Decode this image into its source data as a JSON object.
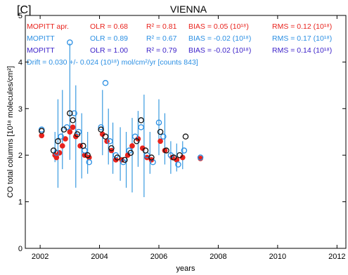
{
  "panel_label": "[C]",
  "title": "VIENNA",
  "stats": [
    {
      "series": "MOPITT apr.",
      "olr": "OLR = 0.68",
      "r2": "R² = 0.81",
      "bias": "BIAS = 0.05 (10¹⁸)",
      "rms": "RMS = 0.12 (10¹⁸)",
      "color": "#e8231d"
    },
    {
      "series": "MOPITT",
      "olr": "OLR = 0.89",
      "r2": "R² = 0.67",
      "bias": "BIAS = -0.02 (10¹⁸)",
      "rms": "RMS = 0.17 (10¹⁸)",
      "color": "#2b8fe3"
    },
    {
      "series": "MOPITT",
      "olr": "OLR = 1.00",
      "r2": "R² = 0.79",
      "bias": "BIAS = -0.02 (10¹⁸)",
      "rms": "RMS = 0.14 (10¹⁸)",
      "color": "#3a1fc8"
    }
  ],
  "drift_text": "Drift = 0.030 +/-  0.024 (10¹⁸) mol/cm²/yr  [counts  843]",
  "drift_color": "#2b8fe3",
  "chart_data": {
    "type": "scatter",
    "xlabel": "years",
    "ylabel": "CO total columns [10¹⁸ molecules/cm²]",
    "xlim": [
      2001.5,
      2012.3
    ],
    "ylim": [
      0,
      5
    ],
    "x_ticks": [
      2002,
      2004,
      2006,
      2008,
      2010,
      2012
    ],
    "y_ticks": [
      0,
      1,
      2,
      3,
      4,
      5
    ],
    "grid": false,
    "colors": {
      "ftir_bars": "#3a9be0",
      "mopitt_apr": "#e8231d",
      "mopitt": "#2b8fe3",
      "mopitt_smoothed": "#111111"
    },
    "ftir_error_bars": [
      {
        "x": 2002.5,
        "low": 1.85,
        "high": 2.5
      },
      {
        "x": 2002.6,
        "low": 1.3,
        "high": 3.2
      },
      {
        "x": 2002.75,
        "low": 1.7,
        "high": 3.4
      },
      {
        "x": 2003.0,
        "low": 1.9,
        "high": 4.4
      },
      {
        "x": 2003.2,
        "low": 1.3,
        "high": 3.5
      },
      {
        "x": 2003.4,
        "low": 1.5,
        "high": 2.9
      },
      {
        "x": 2003.6,
        "low": 1.6,
        "high": 2.5
      },
      {
        "x": 2004.1,
        "low": 2.0,
        "high": 3.4
      },
      {
        "x": 2004.3,
        "low": 1.8,
        "high": 3.0
      },
      {
        "x": 2004.45,
        "low": 1.6,
        "high": 2.7
      },
      {
        "x": 2004.7,
        "low": 1.45,
        "high": 2.6
      },
      {
        "x": 2004.9,
        "low": 1.3,
        "high": 2.5
      },
      {
        "x": 2005.1,
        "low": 1.2,
        "high": 2.8
      },
      {
        "x": 2005.3,
        "low": 1.75,
        "high": 2.95
      },
      {
        "x": 2005.5,
        "low": 1.1,
        "high": 3.3
      },
      {
        "x": 2005.7,
        "low": 1.6,
        "high": 2.5
      },
      {
        "x": 2006.0,
        "low": 2.0,
        "high": 3.2
      },
      {
        "x": 2006.2,
        "low": 1.8,
        "high": 2.9
      },
      {
        "x": 2006.4,
        "low": 1.6,
        "high": 2.3
      },
      {
        "x": 2006.6,
        "low": 1.65,
        "high": 2.25
      },
      {
        "x": 2006.8,
        "low": 1.7,
        "high": 2.3
      }
    ],
    "series": [
      {
        "name": "MOPITT apr.",
        "points": [
          {
            "x": 2002.05,
            "y": 2.42
          },
          {
            "x": 2002.5,
            "y": 2.0
          },
          {
            "x": 2002.55,
            "y": 1.95
          },
          {
            "x": 2002.65,
            "y": 2.05
          },
          {
            "x": 2002.75,
            "y": 2.2
          },
          {
            "x": 2002.85,
            "y": 2.35
          },
          {
            "x": 2003.0,
            "y": 2.5
          },
          {
            "x": 2003.1,
            "y": 2.6
          },
          {
            "x": 2003.2,
            "y": 2.4
          },
          {
            "x": 2003.35,
            "y": 2.2
          },
          {
            "x": 2003.5,
            "y": 2.0
          },
          {
            "x": 2003.65,
            "y": 1.95
          },
          {
            "x": 2004.1,
            "y": 2.45
          },
          {
            "x": 2004.25,
            "y": 2.3
          },
          {
            "x": 2004.4,
            "y": 2.1
          },
          {
            "x": 2004.55,
            "y": 1.9
          },
          {
            "x": 2004.75,
            "y": 1.9
          },
          {
            "x": 2004.95,
            "y": 2.0
          },
          {
            "x": 2005.1,
            "y": 2.2
          },
          {
            "x": 2005.3,
            "y": 2.35
          },
          {
            "x": 2005.45,
            "y": 2.15
          },
          {
            "x": 2005.6,
            "y": 1.95
          },
          {
            "x": 2005.75,
            "y": 1.9
          },
          {
            "x": 2006.05,
            "y": 2.3
          },
          {
            "x": 2006.2,
            "y": 2.1
          },
          {
            "x": 2006.45,
            "y": 1.95
          },
          {
            "x": 2006.6,
            "y": 1.9
          },
          {
            "x": 2006.8,
            "y": 1.95
          },
          {
            "x": 2007.4,
            "y": 1.93
          }
        ]
      },
      {
        "name": "MOPITT",
        "points": [
          {
            "x": 2002.05,
            "y": 2.55
          },
          {
            "x": 2002.55,
            "y": 2.05
          },
          {
            "x": 2002.7,
            "y": 2.4
          },
          {
            "x": 2002.9,
            "y": 2.6
          },
          {
            "x": 2003.0,
            "y": 4.42
          },
          {
            "x": 2003.15,
            "y": 2.9
          },
          {
            "x": 2003.3,
            "y": 2.5
          },
          {
            "x": 2003.5,
            "y": 2.1
          },
          {
            "x": 2003.65,
            "y": 1.85
          },
          {
            "x": 2004.05,
            "y": 2.6
          },
          {
            "x": 2004.2,
            "y": 3.55
          },
          {
            "x": 2004.35,
            "y": 2.3
          },
          {
            "x": 2004.55,
            "y": 2.0
          },
          {
            "x": 2004.8,
            "y": 1.85
          },
          {
            "x": 2005.0,
            "y": 2.1
          },
          {
            "x": 2005.2,
            "y": 2.4
          },
          {
            "x": 2005.4,
            "y": 2.6
          },
          {
            "x": 2005.6,
            "y": 2.0
          },
          {
            "x": 2005.8,
            "y": 1.85
          },
          {
            "x": 2006.0,
            "y": 2.7
          },
          {
            "x": 2006.15,
            "y": 2.4
          },
          {
            "x": 2006.4,
            "y": 2.0
          },
          {
            "x": 2006.65,
            "y": 1.8
          },
          {
            "x": 2006.85,
            "y": 2.1
          },
          {
            "x": 2007.4,
            "y": 1.95
          }
        ]
      },
      {
        "name": "MOPITT",
        "points": [
          {
            "x": 2002.05,
            "y": 2.52
          },
          {
            "x": 2002.45,
            "y": 2.1
          },
          {
            "x": 2002.6,
            "y": 2.3
          },
          {
            "x": 2002.8,
            "y": 2.55
          },
          {
            "x": 2003.0,
            "y": 2.9
          },
          {
            "x": 2003.1,
            "y": 2.75
          },
          {
            "x": 2003.25,
            "y": 2.45
          },
          {
            "x": 2003.45,
            "y": 2.2
          },
          {
            "x": 2003.6,
            "y": 2.0
          },
          {
            "x": 2004.05,
            "y": 2.55
          },
          {
            "x": 2004.2,
            "y": 2.4
          },
          {
            "x": 2004.4,
            "y": 2.15
          },
          {
            "x": 2004.6,
            "y": 1.95
          },
          {
            "x": 2004.85,
            "y": 1.9
          },
          {
            "x": 2005.05,
            "y": 2.05
          },
          {
            "x": 2005.25,
            "y": 2.3
          },
          {
            "x": 2005.4,
            "y": 2.75
          },
          {
            "x": 2005.55,
            "y": 2.1
          },
          {
            "x": 2005.75,
            "y": 1.95
          },
          {
            "x": 2006.05,
            "y": 2.5
          },
          {
            "x": 2006.25,
            "y": 2.1
          },
          {
            "x": 2006.5,
            "y": 1.95
          },
          {
            "x": 2006.7,
            "y": 2.0
          },
          {
            "x": 2006.9,
            "y": 2.4
          }
        ]
      }
    ]
  }
}
